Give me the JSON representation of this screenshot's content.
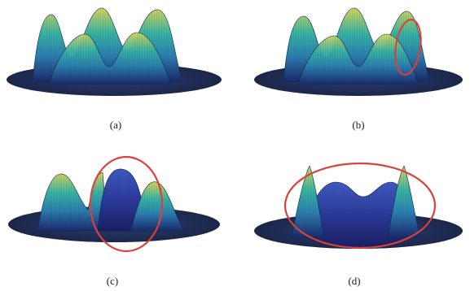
{
  "figure": {
    "panels": [
      {
        "caption": "(a)",
        "highlight": false
      },
      {
        "caption": "(b)",
        "highlight": true
      },
      {
        "caption": "(c)",
        "highlight": true
      },
      {
        "caption": "(d)",
        "highlight": true
      }
    ],
    "colors": {
      "highlight_ring": "#d9413a",
      "base_disk": "#1f2c55",
      "surface_dark": "#2a2a8c",
      "surface_mid": "#2f9c9a",
      "surface_light": "#c9d35a"
    }
  }
}
